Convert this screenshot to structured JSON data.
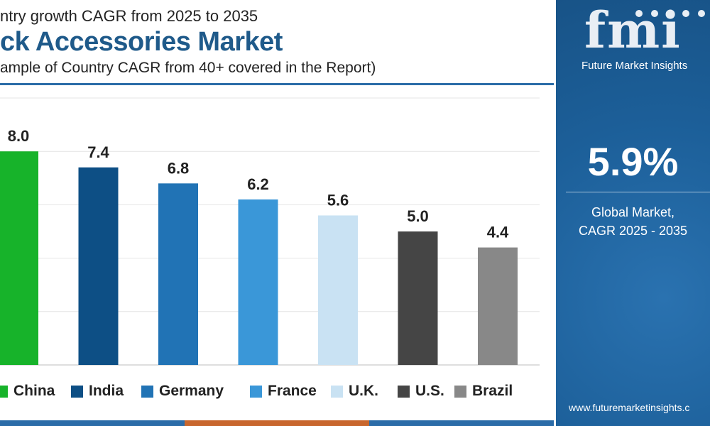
{
  "header": {
    "line1": "ntry growth CAGR from 2025 to 2035",
    "title": "ck Accessories Market",
    "subtitle": "ample of Country CAGR from 40+ covered in the Report)"
  },
  "chart_data": {
    "type": "bar",
    "categories": [
      "China",
      "India",
      "Germany",
      "France",
      "U.K.",
      "U.S.",
      "Brazil"
    ],
    "values": [
      8.0,
      7.4,
      6.8,
      6.2,
      5.6,
      5.0,
      4.4
    ],
    "value_labels": [
      "8.0",
      "7.4",
      "6.8",
      "6.2",
      "5.6",
      "5.0",
      "4.4"
    ],
    "colors": [
      "#17b32a",
      "#0d4f85",
      "#2173b5",
      "#3a97d8",
      "#c9e2f3",
      "#454545",
      "#888888"
    ],
    "ylim": [
      0,
      10
    ],
    "grid": true,
    "legend_position": "bottom"
  },
  "side_panel": {
    "logo_text": "Future Market Insights",
    "cagr_value": "5.9%",
    "cagr_label_line1": "Global Market,",
    "cagr_label_line2": "CAGR 2025 - 2035",
    "website": "www.futuremarketinsights.c"
  },
  "colors": {
    "title_blue": "#1f5a8a",
    "panel_blue": "#1c5f99",
    "strip": [
      "#2b6ca8",
      "#c8662d",
      "#2b6ca8"
    ]
  }
}
